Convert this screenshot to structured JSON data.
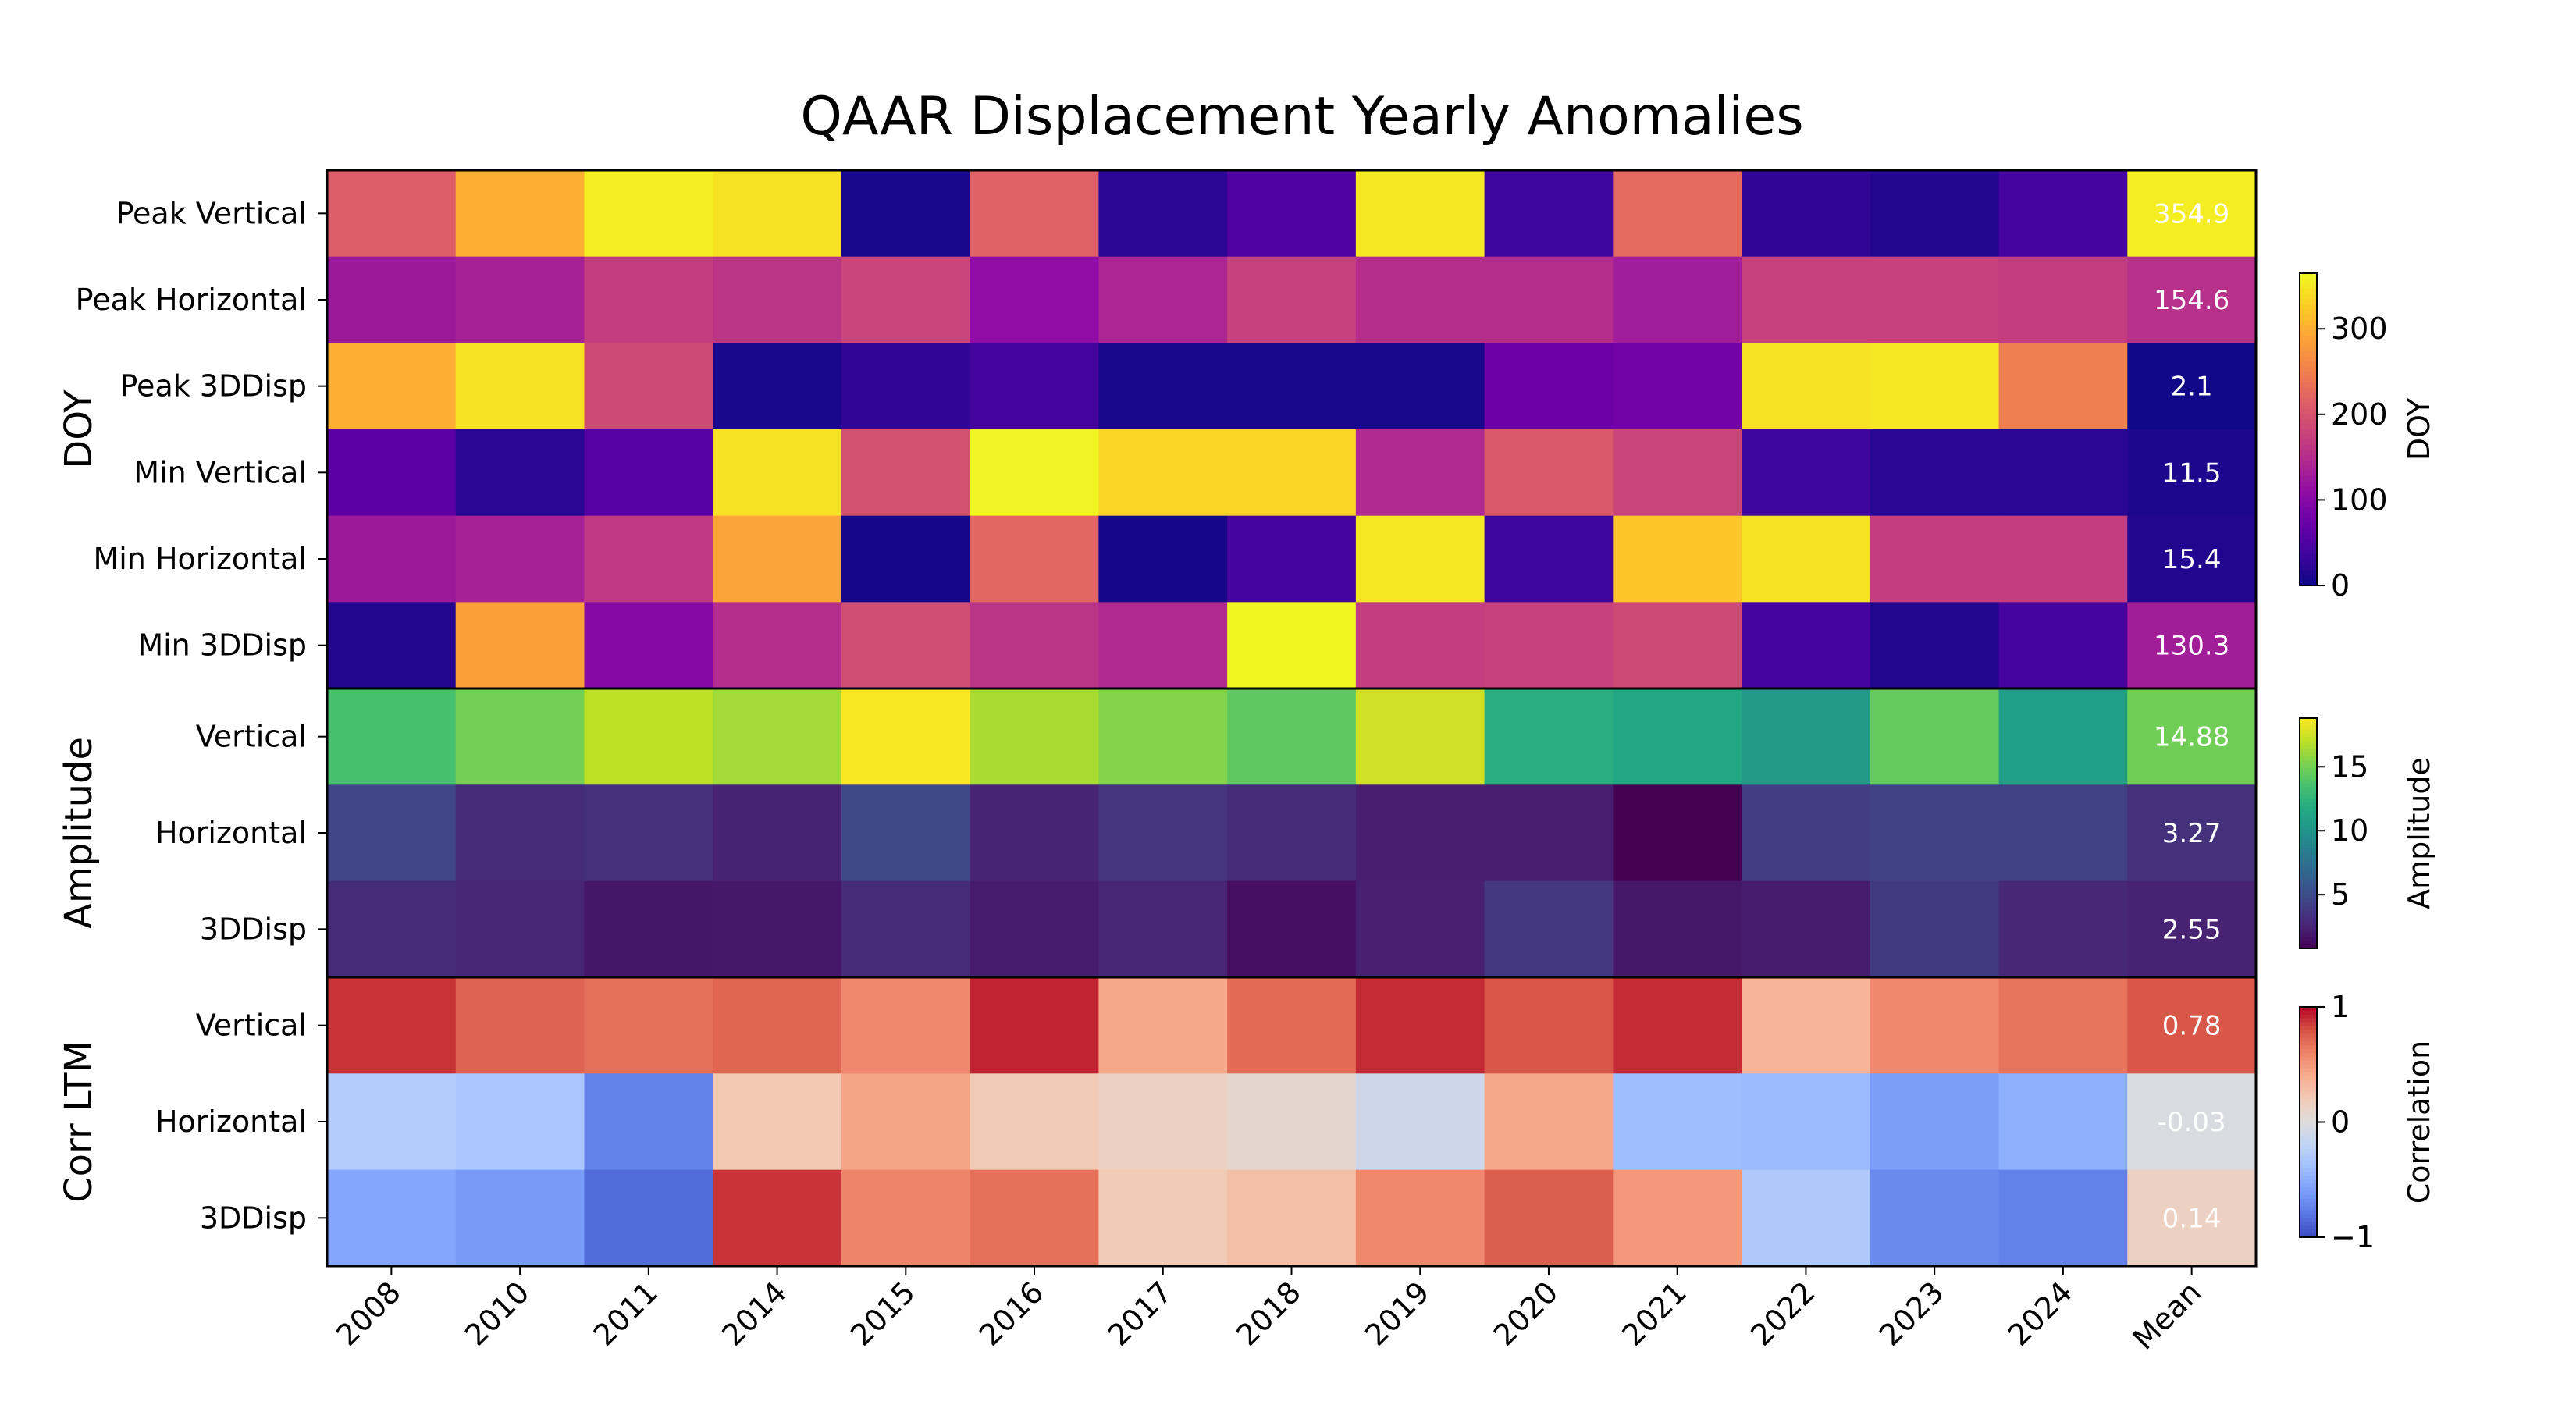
{
  "chart_data": {
    "type": "heatmap",
    "title": "QAAR Displacement Yearly Anomalies",
    "columns": [
      "2008",
      "2010",
      "2011",
      "2014",
      "2015",
      "2016",
      "2017",
      "2018",
      "2019",
      "2020",
      "2021",
      "2022",
      "2023",
      "2024",
      "Mean"
    ],
    "panels": [
      {
        "group_label": "DOY",
        "colormap": "plasma",
        "vmin": 0,
        "vmax": 365,
        "colorbar_label": "DOY",
        "colorbar_ticks": [
          0,
          100,
          200,
          300
        ],
        "colorbar_tick_labels": [
          "0",
          "100",
          "200",
          "300"
        ],
        "rows": [
          "Peak Vertical",
          "Peak Horizontal",
          "Peak 3DDisp",
          "Min Vertical",
          "Min Horizontal",
          "Min 3DDisp"
        ],
        "values": [
          [
            210,
            300,
            355,
            345,
            8,
            215,
            20,
            50,
            350,
            35,
            225,
            25,
            15,
            40,
            354.9
          ],
          [
            125,
            135,
            170,
            160,
            180,
            110,
            140,
            175,
            150,
            150,
            130,
            175,
            175,
            170,
            154.6
          ],
          [
            300,
            345,
            185,
            8,
            25,
            40,
            8,
            8,
            10,
            75,
            80,
            345,
            350,
            250,
            2.1
          ],
          [
            60,
            20,
            55,
            345,
            195,
            360,
            335,
            335,
            145,
            205,
            180,
            35,
            20,
            20,
            11.5
          ],
          [
            125,
            135,
            165,
            290,
            5,
            220,
            5,
            40,
            350,
            35,
            320,
            345,
            170,
            170,
            15.4
          ],
          [
            15,
            285,
            100,
            150,
            190,
            160,
            145,
            362,
            170,
            175,
            185,
            40,
            15,
            40,
            130.3
          ]
        ],
        "mean_labels": [
          "354.9",
          "154.6",
          "2.1",
          "11.5",
          "15.4",
          "130.3"
        ]
      },
      {
        "group_label": "Amplitude",
        "colormap": "viridis",
        "vmin": 0.8,
        "vmax": 18.8,
        "colorbar_label": "Amplitude",
        "colorbar_ticks": [
          5,
          10,
          15
        ],
        "colorbar_tick_labels": [
          "5",
          "10",
          "15"
        ],
        "rows": [
          "Vertical",
          "Horizontal",
          "3DDisp"
        ],
        "values": [
          [
            13.5,
            15.0,
            17.0,
            16.3,
            18.7,
            16.5,
            15.5,
            14.3,
            17.5,
            12.0,
            11.5,
            10.5,
            14.5,
            11.0,
            14.88
          ],
          [
            4.5,
            3.0,
            3.3,
            2.5,
            4.7,
            2.6,
            3.5,
            3.0,
            2.3,
            2.3,
            0.8,
            4.0,
            4.3,
            4.3,
            3.27
          ],
          [
            3.0,
            2.7,
            1.9,
            2.0,
            3.0,
            2.2,
            2.7,
            1.5,
            2.4,
            3.7,
            2.0,
            2.2,
            3.8,
            2.8,
            2.55
          ]
        ],
        "mean_labels": [
          "14.88",
          "3.27",
          "2.55"
        ]
      },
      {
        "group_label": "Corr LTM",
        "colormap": "coolwarm",
        "vmin": -1,
        "vmax": 1,
        "colorbar_label": "Correlation",
        "colorbar_ticks": [
          -1,
          0,
          1
        ],
        "colorbar_tick_labels": [
          "−1",
          "0",
          "1"
        ],
        "rows": [
          "Vertical",
          "Horizontal",
          "3DDisp"
        ],
        "values": [
          [
            0.88,
            0.73,
            0.68,
            0.72,
            0.58,
            0.92,
            0.42,
            0.7,
            0.9,
            0.78,
            0.9,
            0.35,
            0.58,
            0.66,
            0.78
          ],
          [
            -0.28,
            -0.32,
            -0.75,
            0.22,
            0.44,
            0.2,
            0.14,
            0.07,
            -0.12,
            0.42,
            -0.4,
            -0.42,
            -0.6,
            -0.5,
            -0.03
          ],
          [
            -0.55,
            -0.62,
            -0.85,
            0.88,
            0.6,
            0.68,
            0.2,
            0.28,
            0.58,
            0.75,
            0.5,
            -0.3,
            -0.7,
            -0.75,
            0.14
          ]
        ],
        "mean_labels": [
          "0.78",
          "-0.03",
          "0.14"
        ]
      }
    ]
  }
}
